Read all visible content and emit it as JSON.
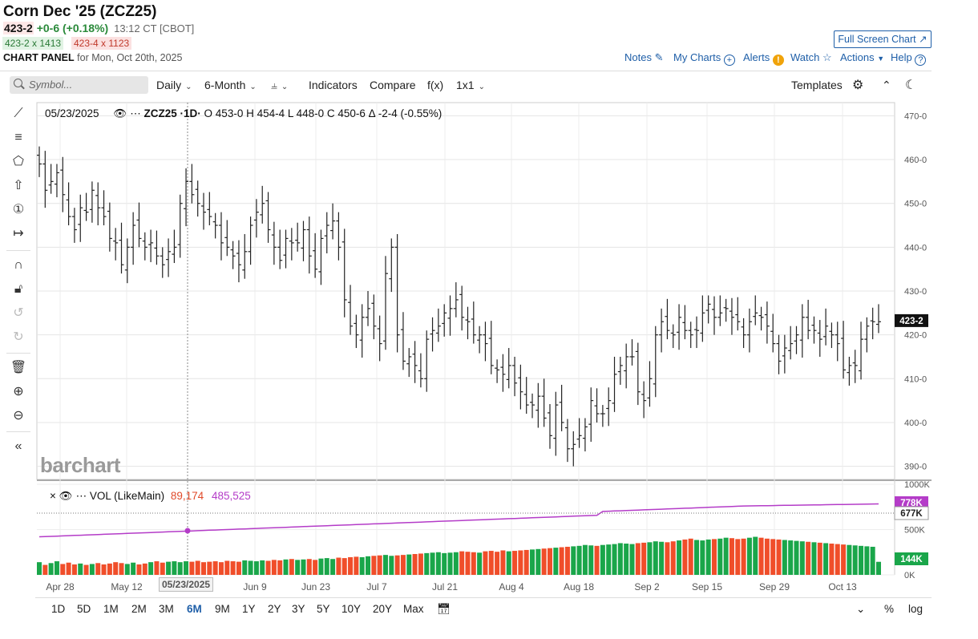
{
  "header": {
    "title": "Corn Dec '25 (ZCZ25)",
    "last": "423-2",
    "change": "+0-6 (+0.18%)",
    "time": "13:12 CT [CBOT]",
    "bid": "423-2 x 1413",
    "ask": "423-4 x 1123",
    "panel_label": "CHART PANEL",
    "panel_date": "for Mon, Oct 20th, 2025",
    "fullscreen_label": "Full Screen Chart"
  },
  "links": {
    "notes": "Notes",
    "my_charts": "My Charts",
    "alerts": "Alerts",
    "watch": "Watch",
    "actions": "Actions",
    "help": "Help"
  },
  "toolbar": {
    "search_placeholder": "Symbol...",
    "interval": "Daily",
    "range": "6-Month",
    "indicators": "Indicators",
    "compare": "Compare",
    "fx": "f(x)",
    "layout": "1x1",
    "templates": "Templates"
  },
  "legend": {
    "date": "05/23/2025",
    "symbol": "ZCZ25 ·1D·",
    "ohlc": "O 453-0  H 454-4  L 448-0  C 450-6  Δ -2-4 (-0.55%)",
    "vol_name": "VOL (LikeMain)",
    "vol_value": "89,174",
    "vol_avg": "485,525",
    "date_tag": "05/23/2025"
  },
  "logo_text": "barchart",
  "badges": {
    "price": "423-2",
    "avg_top": "778K",
    "avg": "677K",
    "vol": "144K"
  },
  "periods": [
    "1D",
    "5D",
    "1M",
    "2M",
    "3M",
    "6M",
    "9M",
    "1Y",
    "2Y",
    "3Y",
    "5Y",
    "10Y",
    "20Y",
    "Max"
  ],
  "active_period": "6M",
  "bottom_right": {
    "pct": "%",
    "log": "log"
  },
  "colors": {
    "up": "#1aa64a",
    "down": "#f04e2a",
    "avg_line": "#b43cc8",
    "price_badge": "#111111",
    "vol_badge": "#1aa64a"
  },
  "chart_data": {
    "type": "ohlc",
    "price_axis": {
      "ticks": [
        "470-0",
        "460-0",
        "450-0",
        "440-0",
        "430-0",
        "420-0",
        "410-0",
        "400-0",
        "390-0"
      ],
      "ylim": [
        387,
        473
      ]
    },
    "x_ticks": [
      "Apr 28",
      "May 12",
      "Jun 9",
      "Jun 23",
      "Jul 7",
      "Jul 21",
      "Aug 4",
      "Aug 18",
      "Sep 2",
      "Sep 15",
      "Sep 29",
      "Oct 13"
    ],
    "volume_axis": {
      "ticks": [
        "1000K",
        "500K",
        "0K"
      ],
      "ylim": [
        0,
        1000000
      ]
    },
    "series": [
      {
        "name": "ZCZ25",
        "close": [
          459,
          453,
          455,
          457,
          452,
          447,
          444,
          449,
          448,
          453,
          449,
          447,
          442,
          441,
          436,
          440,
          445,
          442,
          440,
          441,
          438,
          436,
          439,
          440,
          450,
          455,
          452,
          450,
          448,
          447,
          445,
          441,
          440,
          438,
          436,
          439,
          445,
          448,
          450,
          444,
          440,
          437,
          442,
          441,
          441,
          444,
          438,
          435,
          442,
          445,
          446,
          440,
          428,
          422,
          420,
          424,
          426,
          422,
          418,
          434,
          440,
          420,
          414,
          415,
          413,
          410,
          419,
          421,
          422,
          425,
          426,
          428,
          424,
          423,
          420,
          420,
          418,
          413,
          412,
          411,
          413,
          409,
          407,
          404,
          404,
          406,
          401,
          397,
          404,
          400,
          394,
          395,
          397,
          399,
          405,
          402,
          402,
          405,
          411,
          413,
          415,
          415,
          407,
          405,
          410,
          420,
          423,
          421,
          420,
          424,
          421,
          420,
          421,
          425,
          427,
          424,
          425,
          426,
          424,
          423,
          420,
          423,
          425,
          424,
          422,
          418,
          414,
          417,
          418,
          420,
          424,
          421,
          421,
          419,
          422,
          420,
          418,
          412,
          413,
          413,
          419,
          422,
          423,
          423
        ]
      },
      {
        "name": "VOL (LikeMain)",
        "values_k": [
          140,
          110,
          130,
          150,
          120,
          135,
          115,
          125,
          110,
          120,
          130,
          115,
          125,
          140,
          130,
          120,
          135,
          115,
          125,
          140,
          150,
          135,
          145,
          150,
          140,
          150,
          145,
          155,
          140,
          145,
          150,
          140,
          155,
          150,
          145,
          160,
          155,
          150,
          160,
          155,
          165,
          160,
          170,
          175,
          165,
          170,
          175,
          165,
          180,
          185,
          175,
          190,
          185,
          195,
          200,
          195,
          205,
          210,
          215,
          220,
          210,
          215,
          220,
          225,
          230,
          235,
          240,
          245,
          250,
          240,
          245,
          250,
          260,
          255,
          250,
          245,
          260,
          265,
          255,
          270,
          260,
          265,
          270,
          275,
          280,
          285,
          290,
          295,
          300,
          305,
          310,
          315,
          320,
          330,
          325,
          320,
          330,
          335,
          340,
          350,
          345,
          340,
          350,
          355,
          360,
          370,
          365,
          360,
          370,
          380,
          390,
          400,
          385,
          380,
          390,
          395,
          400,
          410,
          405,
          395,
          400,
          410,
          420,
          410,
          400,
          395,
          390,
          385,
          380,
          375,
          370,
          365,
          360,
          355,
          350,
          345,
          340,
          335,
          330,
          325,
          320,
          315,
          310,
          144
        ]
      }
    ]
  }
}
